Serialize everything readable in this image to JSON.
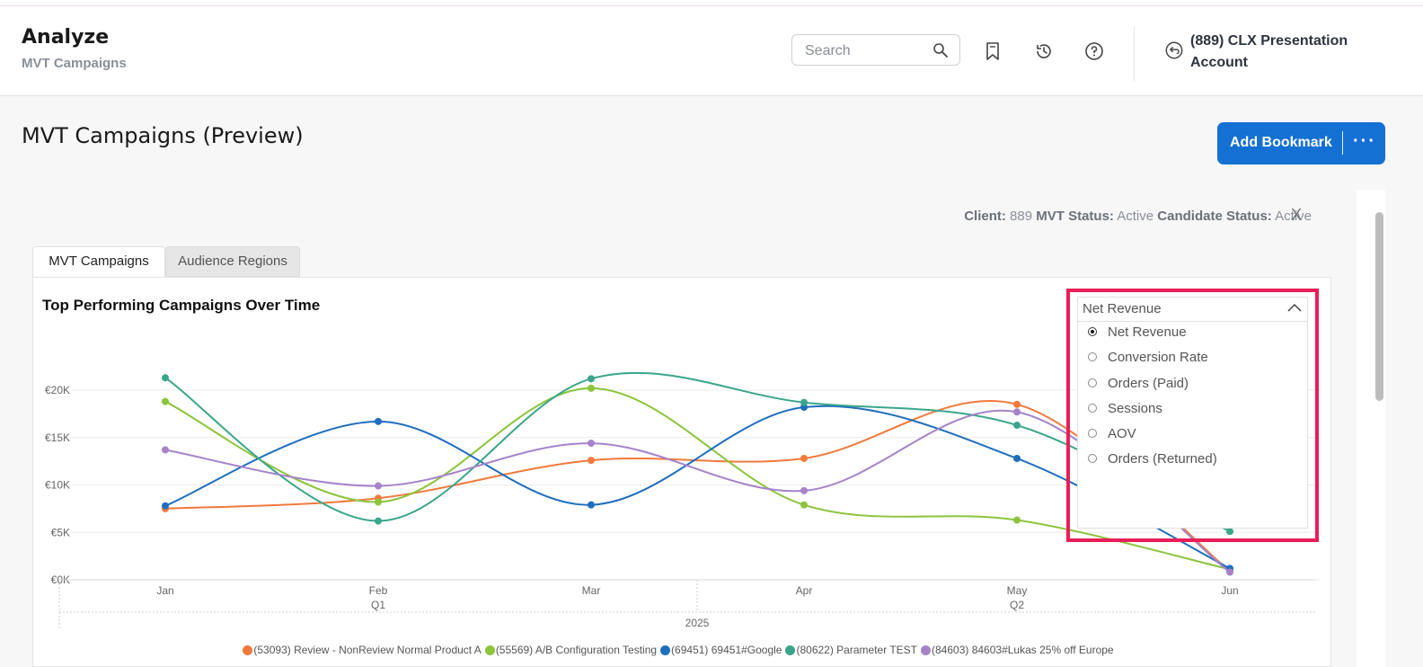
{
  "header": {
    "title": "Analyze",
    "subtitle": "MVT Campaigns",
    "search_placeholder": "Search",
    "account_name": "(889) CLX Presentation Account"
  },
  "page": {
    "title": "MVT Campaigns (Preview)",
    "add_bookmark_label": "Add Bookmark",
    "more_label": "···"
  },
  "status": {
    "client_label": "Client:",
    "client_value": "889",
    "mvt_status_label": "MVT Status:",
    "mvt_status_value": "Active",
    "candidate_status_label": "Candidate Status:",
    "candidate_status_value": "Active",
    "close_label": "X"
  },
  "tabs": [
    {
      "label": "MVT Campaigns",
      "active": true
    },
    {
      "label": "Audience Regions",
      "active": false
    }
  ],
  "metric_dropdown": {
    "selected": "Net Revenue",
    "options": [
      "Net Revenue",
      "Conversion Rate",
      "Orders (Paid)",
      "Sessions",
      "AOV",
      "Orders (Returned)"
    ]
  },
  "chart_data": {
    "type": "line",
    "title": "Top Performing Campaigns Over Time",
    "categories": [
      "Jan",
      "Feb",
      "Mar",
      "Apr",
      "May",
      "Jun"
    ],
    "quarter_labels": [
      {
        "label": "Q1",
        "at": "Feb"
      },
      {
        "label": "Q2",
        "at": "May"
      }
    ],
    "year_label": "2025",
    "y_ticks": [
      "€0K",
      "€5K",
      "€10K",
      "€15K",
      "€20K"
    ],
    "ylim": [
      0,
      20000
    ],
    "grid": true,
    "legend_position": "bottom",
    "series": [
      {
        "name": "(53093) Review - NonReview Normal Product A",
        "color": "#f07a3c",
        "values": [
          7500,
          8600,
          12600,
          12800,
          18500,
          900
        ]
      },
      {
        "name": "(55569) A/B Configuration Testing",
        "color": "#8cc43c",
        "values": [
          18800,
          8200,
          20200,
          7900,
          6300,
          1100
        ]
      },
      {
        "name": "(69451) 69451#Google",
        "color": "#1f6ebd",
        "values": [
          7800,
          16700,
          7900,
          18200,
          12800,
          1200
        ]
      },
      {
        "name": "(80622) Parameter TEST",
        "color": "#3aa58b",
        "values": [
          21300,
          6200,
          21200,
          18700,
          16300,
          5100
        ]
      },
      {
        "name": "(84603) 84603#Lukas 25% off Europe",
        "color": "#a583c9",
        "values": [
          13700,
          9900,
          14400,
          9400,
          17700,
          800
        ]
      }
    ]
  }
}
